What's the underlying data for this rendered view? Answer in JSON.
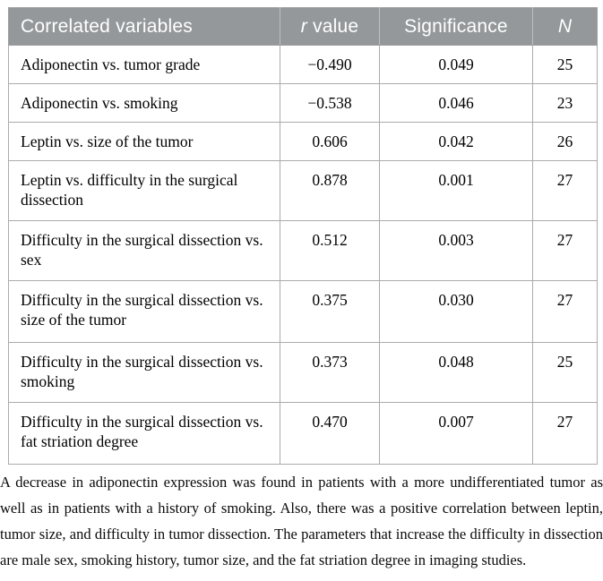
{
  "colors": {
    "header_bg": "#94989b",
    "header_text": "#ffffff",
    "grid_line": "#ababab",
    "body_bg": "#ffffff",
    "body_text": "#000000"
  },
  "table": {
    "header": {
      "variables": "Correlated variables",
      "r_italic": "r",
      "r_rest": " value",
      "significance": "Significance",
      "n": "N"
    },
    "rows": [
      {
        "variables": "Adiponectin vs. tumor grade",
        "r_value": "−0.490",
        "significance": "0.049",
        "n": "25"
      },
      {
        "variables": "Adiponectin vs. smoking",
        "r_value": "−0.538",
        "significance": "0.046",
        "n": "23"
      },
      {
        "variables": "Leptin vs. size of the tumor",
        "r_value": "0.606",
        "significance": "0.042",
        "n": "26"
      },
      {
        "variables": "Leptin vs. difficulty in the surgical dissection",
        "r_value": "0.878",
        "significance": "0.001",
        "n": "27"
      },
      {
        "variables": "Difficulty in the surgical dissection vs. sex",
        "r_value": "0.512",
        "significance": "0.003",
        "n": "27"
      },
      {
        "variables": "Difficulty in the surgical dissection vs. size of the tumor",
        "r_value": "0.375",
        "significance": "0.030",
        "n": "27"
      },
      {
        "variables": "Difficulty in the surgical dissection vs. smoking",
        "r_value": "0.373",
        "significance": "0.048",
        "n": "25"
      },
      {
        "variables": "Difficulty in the surgical dissection vs. fat striation degree",
        "r_value": "0.470",
        "significance": "0.007",
        "n": "27"
      }
    ]
  },
  "chart_data": {
    "type": "table",
    "columns": [
      "Correlated variables",
      "r value",
      "Significance",
      "N"
    ],
    "rows": [
      [
        "Adiponectin vs. tumor grade",
        -0.49,
        0.049,
        25
      ],
      [
        "Adiponectin vs. smoking",
        -0.538,
        0.046,
        23
      ],
      [
        "Leptin vs. size of the tumor",
        0.606,
        0.042,
        26
      ],
      [
        "Leptin vs. difficulty in the surgical dissection",
        0.878,
        0.001,
        27
      ],
      [
        "Difficulty in the surgical dissection vs. sex",
        0.512,
        0.003,
        27
      ],
      [
        "Difficulty in the surgical dissection vs. size of the tumor",
        0.375,
        0.03,
        27
      ],
      [
        "Difficulty in the surgical dissection vs. smoking",
        0.373,
        0.048,
        25
      ],
      [
        "Difficulty in the surgical dissection vs. fat striation degree",
        0.47,
        0.007,
        27
      ]
    ]
  },
  "caption": "A decrease in adiponectin expression was found in patients with a more undifferentiated tumor as well as in patients with a history of smoking. Also, there was a positive correlation between leptin, tumor size, and difficulty in tumor dissection. The parameters that increase the difficulty in dissection are male sex, smoking history, tumor size, and the fat striation degree in imaging studies."
}
